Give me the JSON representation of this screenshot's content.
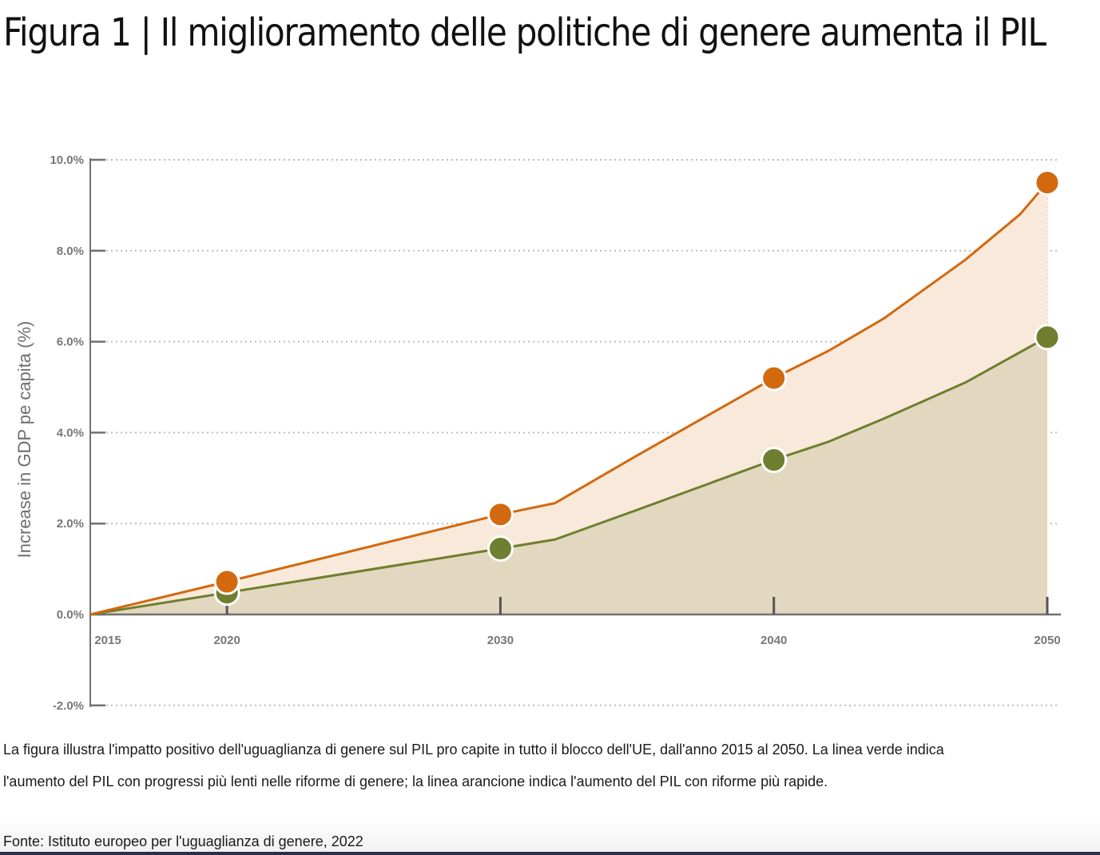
{
  "title": "Figura 1 | Il miglioramento delle politiche di genere aumenta il PIL",
  "caption_line1": "La figura illustra l'impatto positivo dell'uguaglianza di genere sul PIL pro capite in tutto il blocco dell'UE, dall'anno 2015 al 2050. La linea verde indica",
  "caption_line2": "l'aumento del PIL con progressi più lenti nelle riforme di genere; la linea arancione indica l'aumento del PIL con riforme più rapide.",
  "source": "Fonte: Istituto europeo per l'uguaglianza di genere, 2022",
  "colors": {
    "orange": "#d2690f",
    "green": "#6f7f2f",
    "orange_fill": "#f8e9da",
    "green_fill": "#e2d8bf",
    "axis": "#707070",
    "grid": "#bdbdbd"
  },
  "chart_data": {
    "type": "area",
    "title": "",
    "xlabel": "",
    "ylabel": "Increase in GDP pe capita (%)",
    "xlim": [
      2015,
      2050
    ],
    "ylim": [
      -2,
      10
    ],
    "x_ticks": [
      2015,
      2020,
      2030,
      2040,
      2050
    ],
    "x_tick_labels": [
      "2015",
      "2020",
      "2030",
      "2040",
      "2050"
    ],
    "y_ticks": [
      -2,
      0,
      2,
      4,
      6,
      8,
      10
    ],
    "y_tick_labels": [
      "-2.0%",
      "0.0%",
      "2.0%",
      "4.0%",
      "6.0%",
      "8.0%",
      "10.0%"
    ],
    "grid": true,
    "series": [
      {
        "name": "riforme più rapide",
        "color": "#d2690f",
        "x": [
          2015,
          2020,
          2030,
          2032,
          2035,
          2040,
          2042,
          2044,
          2047,
          2049,
          2050
        ],
        "values": [
          0,
          0.72,
          2.2,
          2.45,
          3.5,
          5.2,
          5.8,
          6.5,
          7.8,
          8.8,
          9.5
        ],
        "markers_x": [
          2020,
          2030,
          2040,
          2050
        ],
        "markers_y": [
          0.72,
          2.2,
          5.2,
          9.5
        ]
      },
      {
        "name": "progressi più lenti",
        "color": "#6f7f2f",
        "x": [
          2015,
          2020,
          2030,
          2032,
          2035,
          2040,
          2042,
          2044,
          2047,
          2050
        ],
        "values": [
          0,
          0.48,
          1.45,
          1.65,
          2.3,
          3.4,
          3.8,
          4.3,
          5.1,
          6.1
        ],
        "markers_x": [
          2020,
          2030,
          2040,
          2050
        ],
        "markers_y": [
          0.48,
          1.45,
          3.4,
          6.1
        ]
      }
    ]
  }
}
